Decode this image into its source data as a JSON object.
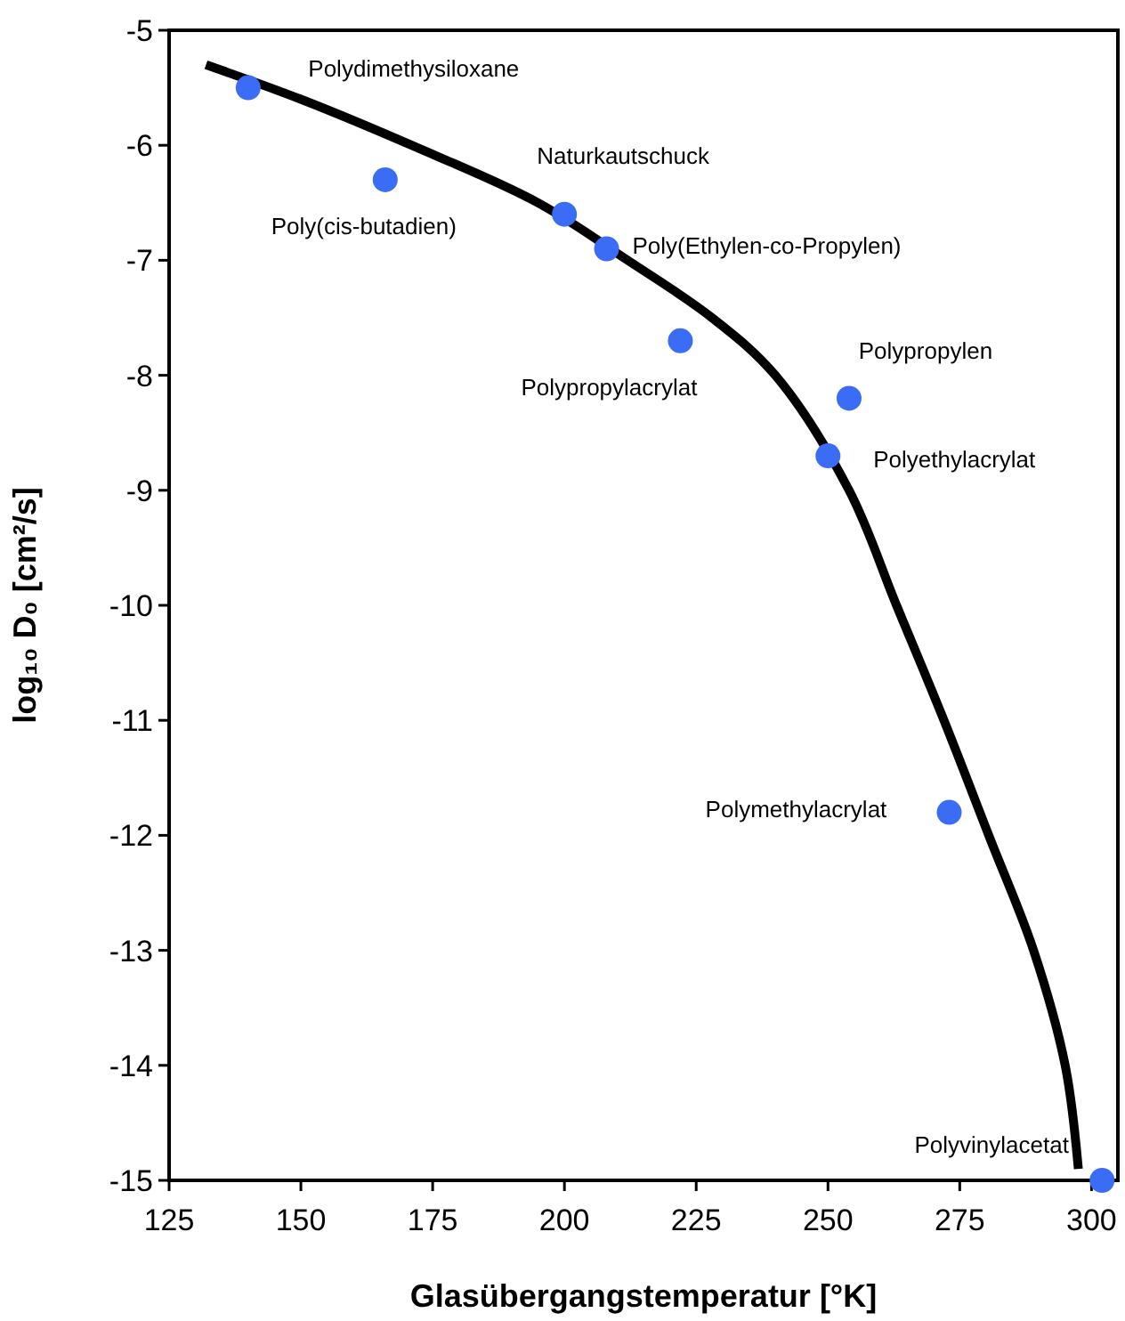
{
  "chart_data": {
    "type": "scatter",
    "xlabel": "Glasübergangstemperatur [°K]",
    "ylabel": "log₁₀ D₀ [cm²/s]",
    "xlim": [
      125,
      305
    ],
    "xticks": [
      125,
      150,
      175,
      200,
      225,
      250,
      275,
      300
    ],
    "ylim": [
      -15,
      -5
    ],
    "yticks": [
      -15,
      -14,
      -13,
      -12,
      -11,
      -10,
      -9,
      -8,
      -7,
      -6,
      -5
    ],
    "series": [
      {
        "marker": "circle",
        "color": "#3b6cf5",
        "x": [
          140,
          166,
          200,
          208,
          222,
          250,
          254,
          273,
          302
        ],
        "values": [
          -5.5,
          -6.3,
          -6.6,
          -6.9,
          -7.7,
          -8.7,
          -8.2,
          -11.8,
          -15
        ]
      },
      {
        "type": "line",
        "color": "#000000",
        "line_style": "solid",
        "x": [
          132,
          150,
          171,
          195,
          212,
          228,
          240,
          254,
          263,
          272,
          280.5,
          289,
          295,
          297.5
        ],
        "values": [
          -5.3,
          -5.6,
          -6,
          -6.5,
          -7,
          -7.5,
          -8,
          -9,
          -10,
          -11,
          -12,
          -13,
          -14,
          -14.9
        ]
      }
    ],
    "annotations": [
      {
        "text": "Polydimethysiloxane",
        "x": 140,
        "y": -5.5
      },
      {
        "text": "Poly(cis-butadien)",
        "x": 166,
        "y": -6.3
      },
      {
        "text": "Naturkautschuck",
        "x": 200,
        "y": -6.6
      },
      {
        "text": "Poly(Ethylen-co-Propylen)",
        "x": 208,
        "y": -6.9
      },
      {
        "text": "Polypropylacrylat",
        "x": 222,
        "y": -7.7
      },
      {
        "text": "Polypropylen",
        "x": 254,
        "y": -8.2
      },
      {
        "text": "Polyethylacrylat",
        "x": 250,
        "y": -8.7
      },
      {
        "text": "Polymethylacrylat",
        "x": 273,
        "y": -11.8
      },
      {
        "text": "Polyvinylacetat",
        "x": 302,
        "y": -15
      }
    ]
  }
}
